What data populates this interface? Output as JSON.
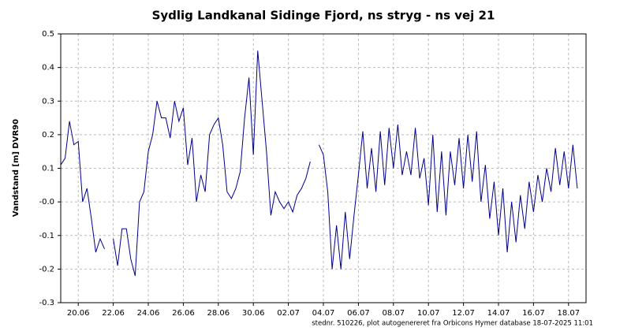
{
  "chart_data": {
    "type": "line",
    "title": "Sydlig Landkanal Sidinge Fjord, ns stryg - ns vej 21",
    "y_label": "Vandstand [m] DVR90",
    "footnote": "stednr. 510226, plot autogenereret fra Orbicons Hymer database 18-07-2025 11:01",
    "x": [
      "2025-06-19T00:00",
      "2025-06-19T06:00",
      "2025-06-19T12:00",
      "2025-06-19T18:00",
      "2025-06-20T00:00",
      "2025-06-20T06:00",
      "2025-06-20T12:00",
      "2025-06-20T18:00",
      "2025-06-21T00:00",
      "2025-06-21T06:00",
      "2025-06-21T12:00",
      "2025-06-21T18:00",
      "2025-06-22T00:00",
      "2025-06-22T06:00",
      "2025-06-22T12:00",
      "2025-06-22T18:00",
      "2025-06-23T00:00",
      "2025-06-23T06:00",
      "2025-06-23T12:00",
      "2025-06-23T18:00",
      "2025-06-24T00:00",
      "2025-06-24T06:00",
      "2025-06-24T12:00",
      "2025-06-24T18:00",
      "2025-06-25T00:00",
      "2025-06-25T06:00",
      "2025-06-25T12:00",
      "2025-06-25T18:00",
      "2025-06-26T00:00",
      "2025-06-26T06:00",
      "2025-06-26T12:00",
      "2025-06-26T18:00",
      "2025-06-27T00:00",
      "2025-06-27T06:00",
      "2025-06-27T12:00",
      "2025-06-27T18:00",
      "2025-06-28T00:00",
      "2025-06-28T06:00",
      "2025-06-28T12:00",
      "2025-06-28T18:00",
      "2025-06-29T00:00",
      "2025-06-29T06:00",
      "2025-06-29T12:00",
      "2025-06-29T18:00",
      "2025-06-30T00:00",
      "2025-06-30T06:00",
      "2025-06-30T12:00",
      "2025-06-30T18:00",
      "2025-07-01T00:00",
      "2025-07-01T06:00",
      "2025-07-01T12:00",
      "2025-07-01T18:00",
      "2025-07-02T00:00",
      "2025-07-02T06:00",
      "2025-07-02T12:00",
      "2025-07-02T18:00",
      "2025-07-03T00:00",
      "2025-07-03T06:00",
      "2025-07-03T12:00",
      "2025-07-03T18:00",
      "2025-07-04T00:00",
      "2025-07-04T06:00",
      "2025-07-04T12:00",
      "2025-07-04T18:00",
      "2025-07-05T00:00",
      "2025-07-05T06:00",
      "2025-07-05T12:00",
      "2025-07-05T18:00",
      "2025-07-06T00:00",
      "2025-07-06T06:00",
      "2025-07-06T12:00",
      "2025-07-06T18:00",
      "2025-07-07T00:00",
      "2025-07-07T06:00",
      "2025-07-07T12:00",
      "2025-07-07T18:00",
      "2025-07-08T00:00",
      "2025-07-08T06:00",
      "2025-07-08T12:00",
      "2025-07-08T18:00",
      "2025-07-09T00:00",
      "2025-07-09T06:00",
      "2025-07-09T12:00",
      "2025-07-09T18:00",
      "2025-07-10T00:00",
      "2025-07-10T06:00",
      "2025-07-10T12:00",
      "2025-07-10T18:00",
      "2025-07-11T00:00",
      "2025-07-11T06:00",
      "2025-07-11T12:00",
      "2025-07-11T18:00",
      "2025-07-12T00:00",
      "2025-07-12T06:00",
      "2025-07-12T12:00",
      "2025-07-12T18:00",
      "2025-07-13T00:00",
      "2025-07-13T06:00",
      "2025-07-13T12:00",
      "2025-07-13T18:00",
      "2025-07-14T00:00",
      "2025-07-14T06:00",
      "2025-07-14T12:00",
      "2025-07-14T18:00",
      "2025-07-15T00:00",
      "2025-07-15T06:00",
      "2025-07-15T12:00",
      "2025-07-15T18:00",
      "2025-07-16T00:00",
      "2025-07-16T06:00",
      "2025-07-16T12:00",
      "2025-07-16T18:00",
      "2025-07-17T00:00",
      "2025-07-17T06:00",
      "2025-07-17T12:00",
      "2025-07-17T18:00",
      "2025-07-18T00:00",
      "2025-07-18T06:00",
      "2025-07-18T12:00"
    ],
    "series": [
      {
        "name": "Vandstand",
        "color": "#00008b",
        "values": [
          0.11,
          0.13,
          0.24,
          0.17,
          0.18,
          0.0,
          0.04,
          -0.05,
          -0.15,
          -0.11,
          -0.14,
          null,
          -0.11,
          -0.19,
          -0.08,
          -0.08,
          -0.17,
          -0.22,
          0.0,
          0.03,
          0.15,
          0.2,
          0.3,
          0.25,
          0.25,
          0.19,
          0.3,
          0.24,
          0.28,
          0.11,
          0.19,
          0.0,
          0.08,
          0.03,
          0.2,
          0.23,
          0.25,
          0.17,
          0.03,
          0.01,
          0.04,
          0.09,
          0.25,
          0.37,
          0.14,
          0.45,
          0.3,
          0.15,
          -0.04,
          0.03,
          0.0,
          -0.02,
          0.0,
          -0.03,
          0.02,
          0.04,
          0.07,
          0.12,
          null,
          0.17,
          0.14,
          0.03,
          -0.2,
          -0.07,
          -0.2,
          -0.03,
          -0.17,
          -0.04,
          0.08,
          0.21,
          0.04,
          0.16,
          0.03,
          0.21,
          0.05,
          0.22,
          0.1,
          0.23,
          0.08,
          0.15,
          0.08,
          0.22,
          0.07,
          0.13,
          -0.01,
          0.2,
          -0.03,
          0.15,
          -0.04,
          0.15,
          0.05,
          0.19,
          0.04,
          0.2,
          0.06,
          0.21,
          0.0,
          0.11,
          -0.05,
          0.06,
          -0.1,
          0.04,
          -0.15,
          0.0,
          -0.12,
          0.02,
          -0.08,
          0.06,
          -0.03,
          0.08,
          0.0,
          0.1,
          0.03,
          0.16,
          0.05,
          0.15,
          0.04,
          0.17,
          0.04
        ]
      }
    ],
    "xlim": [
      "2025-06-19T00:00",
      "2025-07-19T00:00"
    ],
    "xticks": [
      {
        "value": "2025-06-20T00:00",
        "label": "20.06"
      },
      {
        "value": "2025-06-22T00:00",
        "label": "22.06"
      },
      {
        "value": "2025-06-24T00:00",
        "label": "24.06"
      },
      {
        "value": "2025-06-26T00:00",
        "label": "26.06"
      },
      {
        "value": "2025-06-28T00:00",
        "label": "28.06"
      },
      {
        "value": "2025-06-30T00:00",
        "label": "30.06"
      },
      {
        "value": "2025-07-02T00:00",
        "label": "02.07"
      },
      {
        "value": "2025-07-04T00:00",
        "label": "04.07"
      },
      {
        "value": "2025-07-06T00:00",
        "label": "06.07"
      },
      {
        "value": "2025-07-08T00:00",
        "label": "08.07"
      },
      {
        "value": "2025-07-10T00:00",
        "label": "10.07"
      },
      {
        "value": "2025-07-12T00:00",
        "label": "12.07"
      },
      {
        "value": "2025-07-14T00:00",
        "label": "14.07"
      },
      {
        "value": "2025-07-16T00:00",
        "label": "16.07"
      },
      {
        "value": "2025-07-18T00:00",
        "label": "18.07"
      }
    ],
    "ylim": [
      -0.3,
      0.5
    ],
    "yticks": [
      0.5,
      0.4,
      0.3,
      0.2,
      0.1,
      {
        "value": 0,
        "label": "-0.0"
      },
      -0.1,
      -0.2,
      -0.3
    ],
    "grid": true
  }
}
